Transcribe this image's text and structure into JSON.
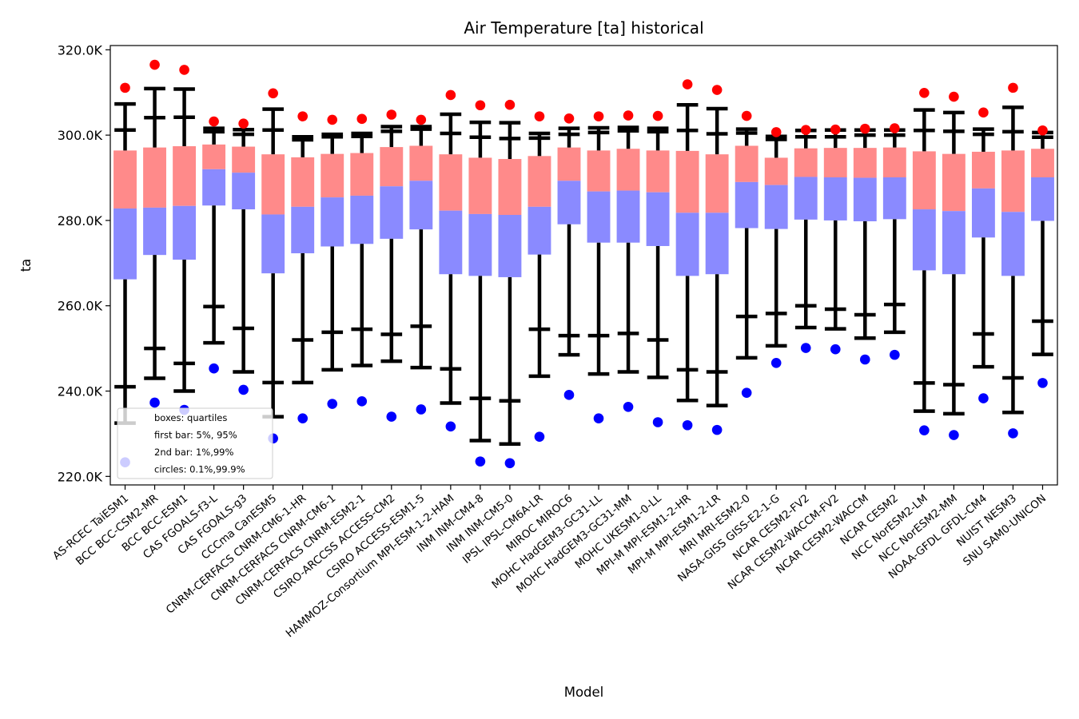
{
  "chart_data": {
    "type": "box",
    "title": "Air Temperature [ta] historical",
    "xlabel": "Model",
    "ylabel": "ta",
    "ylim": [
      218,
      321
    ],
    "yticks": [
      220,
      240,
      260,
      280,
      300,
      320
    ],
    "ytick_labels": [
      "220.0K",
      "240.0K",
      "260.0K",
      "280.0K",
      "300.0K",
      "320.0K"
    ],
    "legend": {
      "position": "lower-left",
      "lines": [
        "boxes: quartiles",
        "first bar: 5%, 95%",
        "2nd bar: 1%,99%",
        "circles: 0.1%,99.9%"
      ]
    },
    "colors": {
      "upper_box": "#ff8a8a",
      "lower_box": "#8a8aff",
      "whisker": "#000000",
      "high_circle": "#ff0000",
      "low_circle": "#0000ff"
    },
    "categories": [
      "AS-RCEC TaiESM1",
      "BCC BCC-CSM2-MR",
      "BCC BCC-ESM1",
      "CAS FGOALS-f3-L",
      "CAS FGOALS-g3",
      "CCCma CanESM5",
      "CNRM-CERFACS CNRM-CM6-1-HR",
      "CNRM-CERFACS CNRM-CM6-1",
      "CNRM-CERFACS CNRM-ESM2-1",
      "CSIRO-ARCCSS ACCESS-CM2",
      "CSIRO ACCESS-ESM1-5",
      "HAMMOZ-Consortium MPI-ESM-1-2-HAM",
      "INM INM-CM4-8",
      "INM INM-CM5-0",
      "IPSL IPSL-CM6A-LR",
      "MIROC MIROC6",
      "MOHC HadGEM3-GC31-LL",
      "MOHC HadGEM3-GC31-MM",
      "MOHC UKESM1-0-LL",
      "MPI-M MPI-ESM1-2-HR",
      "MPI-M MPI-ESM1-2-LR",
      "MRI MRI-ESM2-0",
      "NASA-GISS GISS-E2-1-G",
      "NCAR CESM2-FV2",
      "NCAR CESM2-WACCM-FV2",
      "NCAR CESM2-WACCM",
      "NCAR CESM2",
      "NCC NorESM2-LM",
      "NCC NorESM2-MM",
      "NOAA-GFDL GFDL-CM4",
      "NUIST NESM3",
      "SNU SAM0-UNICON"
    ],
    "q1": [
      266.2,
      271.9,
      270.8,
      283.5,
      282.6,
      267.6,
      272.3,
      273.9,
      274.5,
      275.7,
      277.9,
      267.4,
      267.0,
      266.7,
      272.0,
      279.1,
      274.8,
      274.8,
      274.0,
      267.0,
      267.4,
      278.2,
      278.0,
      280.2,
      280.0,
      279.8,
      280.3,
      268.3,
      267.4,
      276.0,
      267.0,
      279.9
    ],
    "median": [
      282.8,
      283.0,
      283.4,
      292.0,
      291.2,
      281.4,
      283.2,
      285.4,
      285.8,
      288.0,
      289.3,
      282.3,
      281.5,
      281.3,
      283.2,
      289.3,
      286.8,
      287.0,
      286.6,
      281.8,
      281.8,
      289.0,
      288.3,
      290.2,
      290.1,
      290.0,
      290.1,
      282.6,
      282.2,
      287.5,
      282.0,
      290.1
    ],
    "q3": [
      296.4,
      297.1,
      297.4,
      297.8,
      297.3,
      295.5,
      294.8,
      295.6,
      295.8,
      297.2,
      297.5,
      295.5,
      294.7,
      294.4,
      295.1,
      297.1,
      296.4,
      296.8,
      296.4,
      296.3,
      295.5,
      297.5,
      294.7,
      296.9,
      297.0,
      297.0,
      297.1,
      296.2,
      295.6,
      296.1,
      296.4,
      296.8
    ],
    "p5": [
      241.0,
      250.0,
      246.5,
      259.8,
      254.7,
      242.0,
      252.0,
      253.8,
      254.5,
      253.3,
      255.2,
      245.2,
      238.3,
      237.7,
      254.5,
      253.0,
      253.0,
      253.5,
      252.0,
      245.0,
      244.5,
      257.5,
      258.2,
      260.0,
      259.2,
      257.9,
      260.3,
      241.9,
      241.5,
      253.4,
      243.1,
      256.4
    ],
    "p95": [
      301.2,
      304.1,
      304.2,
      300.8,
      300.2,
      301.2,
      298.9,
      299.6,
      299.7,
      300.9,
      301.4,
      300.4,
      299.5,
      299.2,
      299.3,
      300.2,
      300.6,
      301.0,
      300.8,
      301.1,
      300.3,
      300.5,
      299.0,
      299.6,
      299.6,
      300.0,
      300.0,
      301.1,
      300.9,
      300.2,
      300.8,
      299.5
    ],
    "p1": [
      232.5,
      243.0,
      240.0,
      251.3,
      244.5,
      234.0,
      242.0,
      245.0,
      246.0,
      247.0,
      245.5,
      237.2,
      228.4,
      227.6,
      243.5,
      248.5,
      244.0,
      244.5,
      243.2,
      237.8,
      236.6,
      247.8,
      250.6,
      254.9,
      254.6,
      252.4,
      253.8,
      235.3,
      234.7,
      245.7,
      235.0,
      248.6
    ],
    "p99": [
      307.3,
      310.9,
      310.8,
      301.6,
      301.3,
      306.1,
      299.6,
      300.2,
      300.4,
      302.0,
      302.0,
      304.9,
      303.0,
      302.9,
      300.4,
      301.6,
      301.7,
      301.8,
      301.6,
      307.1,
      306.2,
      301.4,
      299.7,
      301.1,
      301.2,
      301.2,
      301.2,
      305.9,
      305.3,
      301.4,
      306.5,
      300.6
    ],
    "p0_1": [
      223.3,
      237.3,
      235.6,
      245.3,
      240.3,
      228.9,
      233.6,
      237.0,
      237.6,
      234.0,
      235.7,
      231.7,
      223.5,
      223.1,
      229.3,
      239.1,
      233.6,
      236.3,
      232.7,
      232.0,
      230.9,
      239.6,
      246.6,
      250.1,
      249.8,
      247.4,
      248.5,
      230.8,
      229.7,
      238.3,
      230.1,
      241.9
    ],
    "p99_9": [
      311.1,
      316.5,
      315.3,
      303.2,
      302.7,
      309.8,
      304.4,
      303.6,
      303.8,
      304.8,
      303.6,
      309.4,
      307.0,
      307.1,
      304.4,
      303.9,
      304.4,
      304.6,
      304.5,
      311.9,
      310.6,
      304.5,
      300.7,
      301.2,
      301.3,
      301.5,
      301.6,
      309.9,
      309.0,
      305.3,
      311.1,
      301.1
    ]
  }
}
